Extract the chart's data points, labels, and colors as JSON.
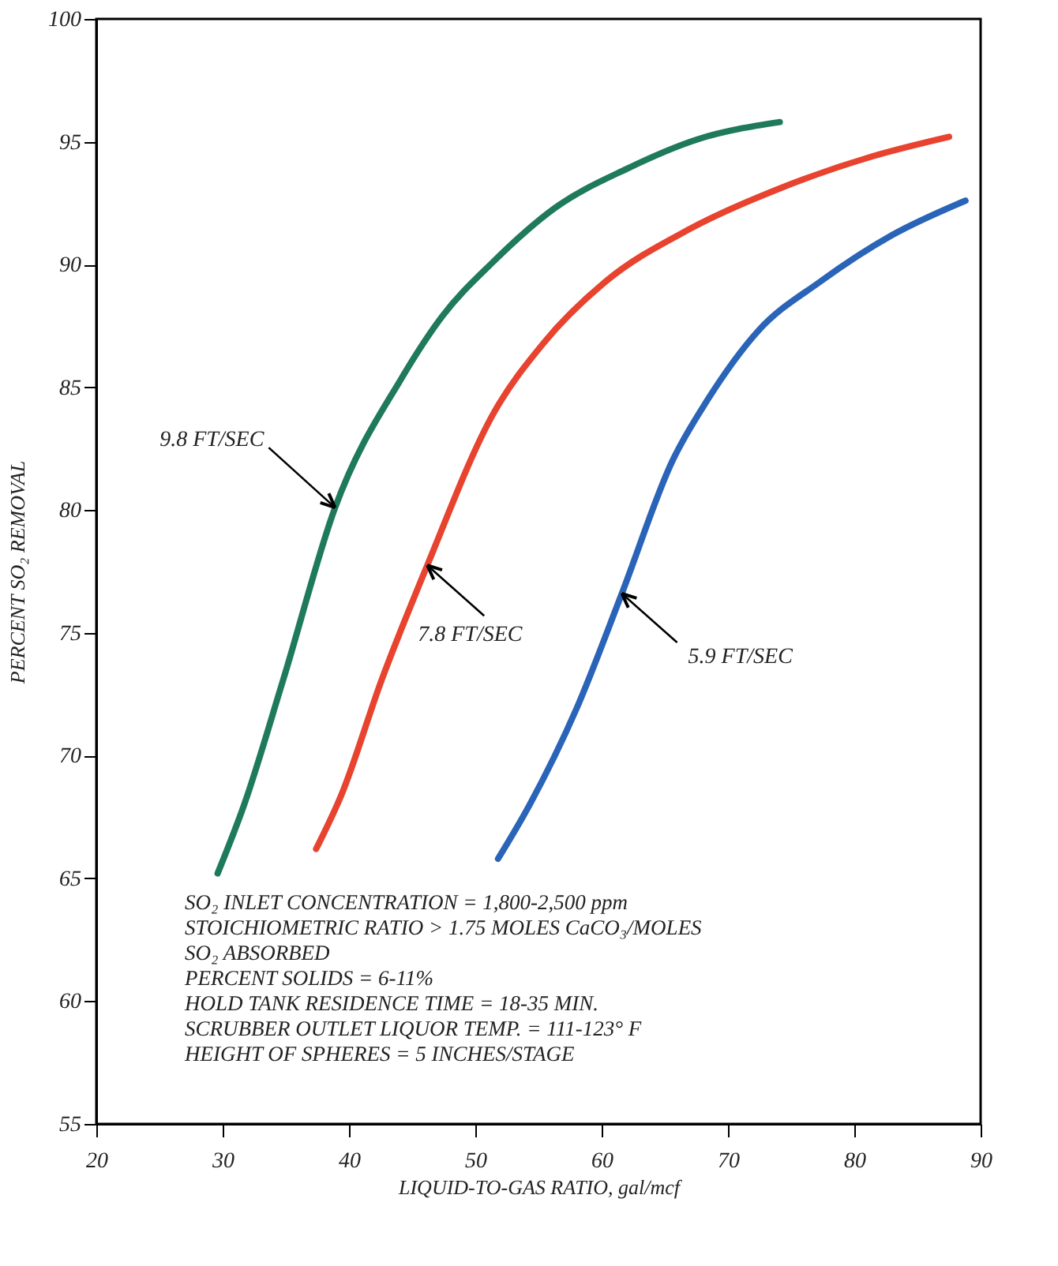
{
  "chart_data": {
    "type": "line",
    "xlabel": "LIQUID-TO-GAS RATIO, gal/mcf",
    "ylabel": "PERCENT SO₂ REMOVAL",
    "xlim": [
      20,
      90
    ],
    "xticks": [
      20,
      30,
      40,
      50,
      60,
      70,
      80,
      90
    ],
    "ylim": [
      55,
      100
    ],
    "yticks": [
      55,
      60,
      65,
      70,
      75,
      80,
      85,
      90,
      95,
      100
    ],
    "grid": false,
    "legend": false,
    "marker": "none",
    "line_style": "solid",
    "series": [
      {
        "color": "#1e7a5a",
        "x": [
          29.6,
          31.7,
          34.8,
          38.9,
          44.2,
          47.4,
          51.4,
          56.3,
          62.0,
          67.6,
          74.1
        ],
        "values": [
          65.2,
          68.0,
          73.1,
          80.1,
          85.4,
          87.9,
          90.1,
          92.3,
          93.9,
          95.1,
          95.8
        ]
      },
      {
        "color": "#e8432e",
        "x": [
          37.4,
          39.4,
          42.6,
          46.2,
          51.4,
          55.4,
          60.3,
          66.8,
          74.1,
          81.4,
          87.5
        ],
        "values": [
          66.2,
          68.4,
          73.1,
          77.75,
          83.9,
          86.8,
          89.3,
          91.4,
          93.1,
          94.4,
          95.2
        ]
      },
      {
        "color": "#2a64b8",
        "x": [
          51.8,
          54.3,
          58.0,
          61.6,
          65.6,
          68.4,
          72.4,
          77.3,
          83.0,
          88.8
        ],
        "values": [
          65.8,
          68.0,
          71.9,
          76.6,
          82.0,
          84.5,
          87.3,
          89.3,
          91.2,
          92.6
        ]
      }
    ],
    "annotations": [
      {
        "text": "9.8 FT/SEC",
        "x": 38.9,
        "y": 80.1
      },
      {
        "text": "7.8 FT/SEC",
        "x": 46.2,
        "y": 77.75
      },
      {
        "text": "5.9 FT/SEC",
        "x": 61.6,
        "y": 76.6
      },
      "SO₂ INLET CONCENTRATION = 1,800-2,500 ppm",
      "STOICHIOMETRIC RATIO > 1.75 MOLES CaCO₃/MOLES",
      "SO₂ ABSORBED",
      "PERCENT SOLIDS = 6-11%",
      "HOLD TANK RESIDENCE TIME = 18-35 MIN.",
      "SCRUBBER OUTLET LIQUOR TEMP. = 111-123° F",
      "HEIGHT OF SPHERES = 5 INCHES/STAGE"
    ]
  }
}
